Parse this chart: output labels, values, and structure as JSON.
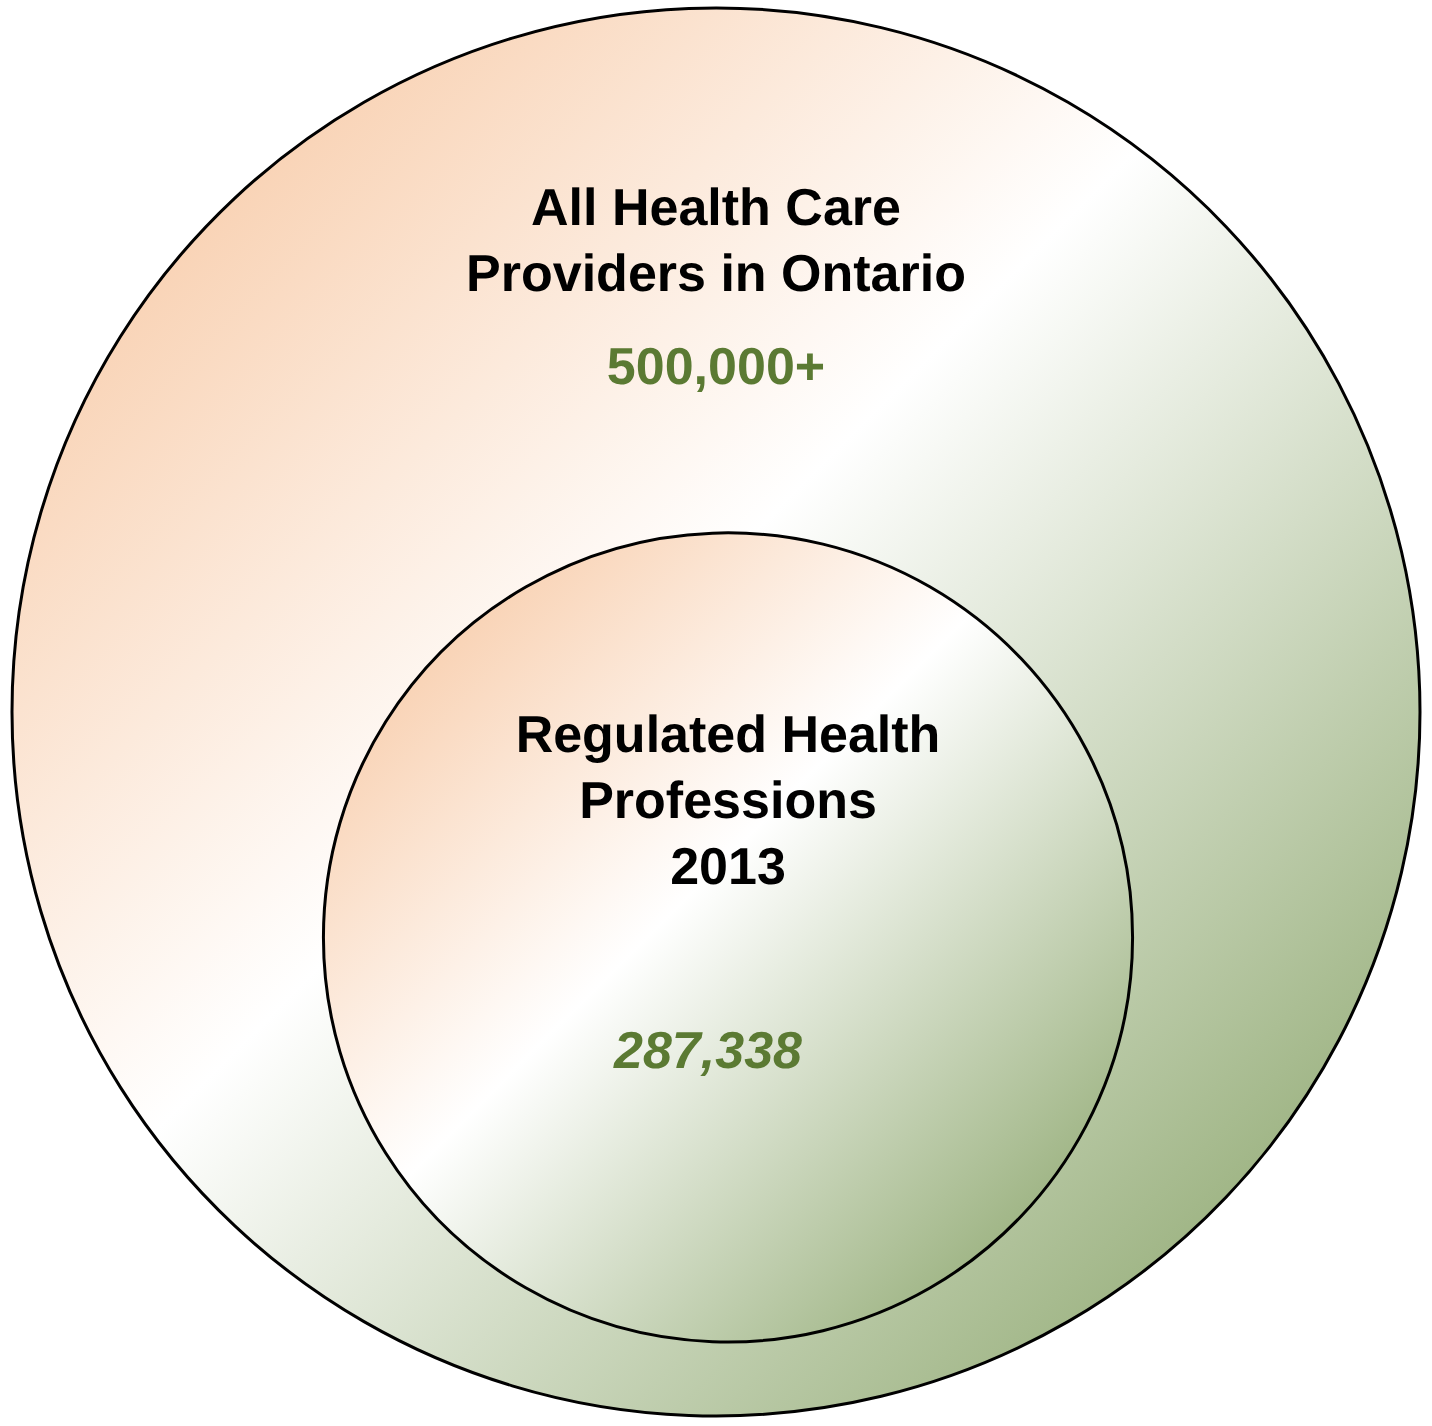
{
  "chart_data": {
    "type": "other",
    "categories": [
      "All Health Care\nProviders in Ontario",
      "Regulated Health\nProfessions\n2013"
    ],
    "values": [
      500000,
      287338
    ],
    "value_labels": [
      "500,000+",
      "287,338"
    ]
  }
}
